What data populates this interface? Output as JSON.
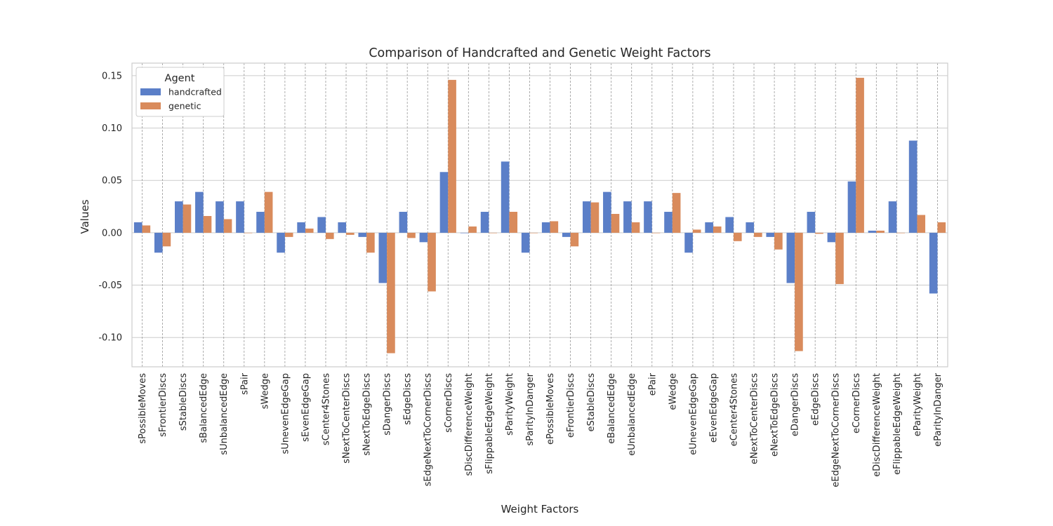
{
  "chart_data": {
    "type": "bar",
    "title": "Comparison of Handcrafted and Genetic Weight Factors",
    "xlabel": "Weight Factors",
    "ylabel": "Values",
    "ylim": [
      -0.128,
      0.162
    ],
    "yticks": [
      -0.1,
      -0.05,
      0.0,
      0.05,
      0.1,
      0.15
    ],
    "ytick_labels": [
      "-0.10",
      "-0.05",
      "0.00",
      "0.05",
      "0.10",
      "0.15"
    ],
    "grid": true,
    "legend": {
      "title": "Agent",
      "placement": "top-left"
    },
    "categories": [
      "sPossibleMoves",
      "sFrontierDiscs",
      "sStableDiscs",
      "sBalancedEdge",
      "sUnbalancedEdge",
      "sPair",
      "sWedge",
      "sUnevenEdgeGap",
      "sEvenEdgeGap",
      "sCenter4Stones",
      "sNextToCenterDiscs",
      "sNextToEdgeDiscs",
      "sDangerDiscs",
      "sEdgeDiscs",
      "sEdgeNextToCornerDiscs",
      "sCornerDiscs",
      "sDiscDifferenceWeight",
      "sFlippableEdgeWeight",
      "sParityWeight",
      "sParityInDanger",
      "ePossibleMoves",
      "eFrontierDiscs",
      "eStableDiscs",
      "eBalancedEdge",
      "eUnbalancedEdge",
      "ePair",
      "eWedge",
      "eUnevenEdgeGap",
      "eEvenEdgeGap",
      "eCenter4Stones",
      "eNextToCenterDiscs",
      "eNextToEdgeDiscs",
      "eDangerDiscs",
      "eEdgeDiscs",
      "eEdgeNextToCornerDiscs",
      "eCornerDiscs",
      "eDiscDifferenceWeight",
      "eFlippableEdgeWeight",
      "eParityWeight",
      "eParityInDanger"
    ],
    "series": [
      {
        "name": "handcrafted",
        "color": "#5b7fc8",
        "values": [
          0.01,
          -0.019,
          0.03,
          0.039,
          0.03,
          0.03,
          0.02,
          -0.019,
          0.01,
          0.015,
          0.01,
          -0.004,
          -0.048,
          0.02,
          -0.009,
          0.058,
          0.0,
          0.02,
          0.068,
          -0.019,
          0.01,
          -0.004,
          0.03,
          0.039,
          0.03,
          0.03,
          0.02,
          -0.019,
          0.01,
          0.015,
          0.01,
          -0.004,
          -0.048,
          0.02,
          -0.009,
          0.049,
          0.002,
          0.03,
          0.088,
          -0.058
        ]
      },
      {
        "name": "genetic",
        "color": "#d98b5c",
        "values": [
          0.007,
          -0.013,
          0.027,
          0.016,
          0.013,
          0.0,
          0.039,
          -0.004,
          0.004,
          -0.006,
          -0.002,
          -0.019,
          -0.115,
          -0.005,
          -0.056,
          0.146,
          0.006,
          0.0,
          0.02,
          0.0,
          0.011,
          -0.013,
          0.029,
          0.018,
          0.01,
          0.0,
          0.038,
          0.003,
          0.006,
          -0.008,
          -0.004,
          -0.016,
          -0.113,
          -0.001,
          -0.049,
          0.148,
          0.002,
          0.0,
          0.017,
          0.01
        ]
      }
    ]
  }
}
